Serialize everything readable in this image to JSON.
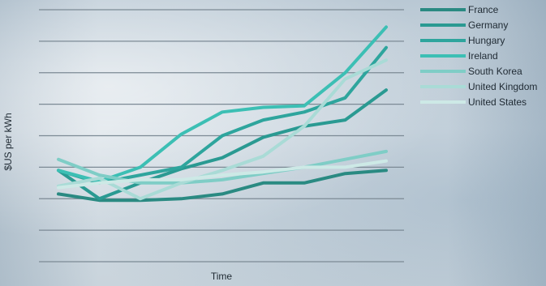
{
  "chart_data": {
    "type": "line",
    "title": "",
    "xlabel": "Time",
    "ylabel": "$US per kWh",
    "x": [
      1,
      2,
      3,
      4,
      5,
      6,
      7,
      8,
      9
    ],
    "ylim": [
      0,
      8
    ],
    "grid": true,
    "legend_position": "top-right",
    "series": [
      {
        "name": "France",
        "color": "#2a8a82",
        "values": [
          2.15,
          1.95,
          1.95,
          2.0,
          2.15,
          2.5,
          2.5,
          2.8,
          2.9
        ]
      },
      {
        "name": "Germany",
        "color": "#2a9a92",
        "values": [
          2.9,
          2.0,
          2.5,
          2.95,
          3.3,
          3.95,
          4.3,
          4.5,
          5.45
        ]
      },
      {
        "name": "Hungary",
        "color": "#2ea59d",
        "values": [
          2.9,
          2.5,
          2.75,
          3.0,
          4.0,
          4.5,
          4.75,
          5.2,
          6.8
        ]
      },
      {
        "name": "Ireland",
        "color": "#3cbfb4",
        "values": [
          2.9,
          2.55,
          3.0,
          4.05,
          4.75,
          4.9,
          4.95,
          6.0,
          7.45
        ]
      },
      {
        "name": "South Korea",
        "color": "#7fcdc6",
        "values": [
          3.25,
          2.75,
          2.5,
          2.5,
          2.6,
          2.8,
          3.0,
          3.25,
          3.5
        ]
      },
      {
        "name": "United Kingdom",
        "color": "#a9dbd6",
        "values": [
          2.4,
          2.65,
          2.0,
          2.5,
          2.9,
          3.35,
          4.3,
          5.8,
          6.4
        ]
      },
      {
        "name": "United States",
        "color": "#cde9e6",
        "values": [
          2.35,
          2.5,
          2.6,
          2.6,
          2.75,
          2.85,
          3.0,
          3.0,
          3.2
        ]
      }
    ]
  }
}
